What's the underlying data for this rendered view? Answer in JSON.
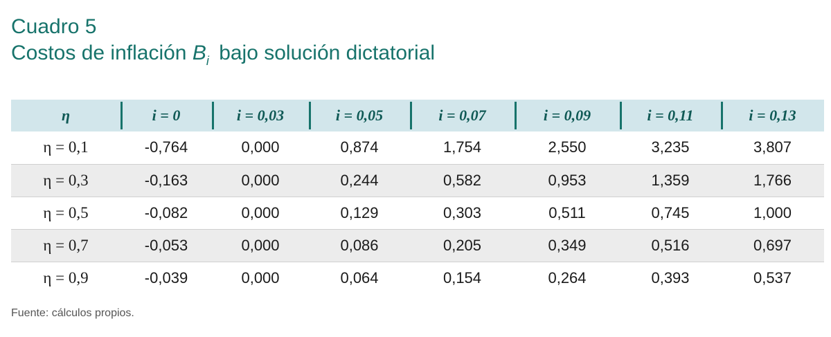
{
  "caption": {
    "number": "Cuadro 5",
    "title_before": "Costos de inflación",
    "variable": "B",
    "subscript": "i",
    "title_after": "bajo solución dictatorial"
  },
  "table": {
    "headers": [
      "η",
      "i = 0",
      "i = 0,03",
      "i = 0,05",
      "i = 0,07",
      "i = 0,09",
      "i = 0,11",
      "i = 0,13"
    ],
    "rows": [
      [
        "η = 0,1",
        "-0,764",
        "0,000",
        "0,874",
        "1,754",
        "2,550",
        "3,235",
        "3,807"
      ],
      [
        "η = 0,3",
        "-0,163",
        "0,000",
        "0,244",
        "0,582",
        "0,953",
        "1,359",
        "1,766"
      ],
      [
        "η = 0,5",
        "-0,082",
        "0,000",
        "0,129",
        "0,303",
        "0,511",
        "0,745",
        "1,000"
      ],
      [
        "η = 0,7",
        "-0,053",
        "0,000",
        "0,086",
        "0,205",
        "0,349",
        "0,516",
        "0,697"
      ],
      [
        "η = 0,9",
        "-0,039",
        "0,000",
        "0,064",
        "0,154",
        "0,264",
        "0,393",
        "0,537"
      ]
    ]
  },
  "source": "Fuente: cálculos propios.",
  "colors": {
    "title": "#17736b",
    "header_background": "#d2e6eb",
    "header_divider": "#17736b",
    "stripe": "#ececec"
  }
}
